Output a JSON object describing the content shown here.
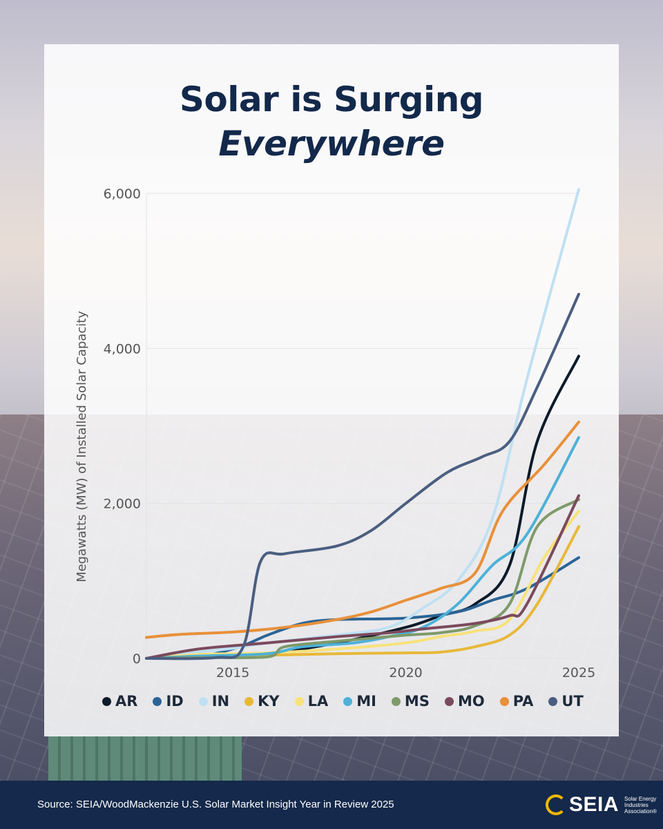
{
  "title_line1": "Solar is Surging",
  "title_line2": "Everywhere",
  "source": "Source: SEIA/WoodMackenzie U.S. Solar Market Insight Year in Review 2025",
  "logo": {
    "name": "SEIA",
    "tagline": "Solar Energy Industries Association®"
  },
  "chart_data": {
    "type": "line",
    "title": "Solar is Surging Everywhere",
    "xlabel": "",
    "ylabel": "Megawatts (MW) of Installed Solar Capacity",
    "xlim": [
      2012.5,
      2025
    ],
    "ylim": [
      0,
      6000
    ],
    "x_ticks": [
      "2015",
      "2020",
      "2025"
    ],
    "y_ticks": [
      "0",
      "2,000",
      "4,000",
      "6,000"
    ],
    "grid": "horizontal",
    "legend_position": "bottom",
    "series": [
      {
        "name": "AR",
        "color": "#0d1b2a",
        "points": [
          [
            2012.5,
            0
          ],
          [
            2014,
            10
          ],
          [
            2016,
            60
          ],
          [
            2018,
            200
          ],
          [
            2020,
            400
          ],
          [
            2021,
            550
          ],
          [
            2022,
            700
          ],
          [
            2023,
            1200
          ],
          [
            2023.8,
            2800
          ],
          [
            2025,
            3900
          ]
        ]
      },
      {
        "name": "ID",
        "color": "#2a6496",
        "points": [
          [
            2012.5,
            0
          ],
          [
            2014,
            20
          ],
          [
            2015.2,
            150
          ],
          [
            2016,
            300
          ],
          [
            2017,
            450
          ],
          [
            2018,
            500
          ],
          [
            2020,
            520
          ],
          [
            2021.5,
            600
          ],
          [
            2022.5,
            750
          ],
          [
            2023.5,
            900
          ],
          [
            2025,
            1300
          ]
        ]
      },
      {
        "name": "IN",
        "color": "#bfe0f2",
        "points": [
          [
            2012.5,
            0
          ],
          [
            2014,
            80
          ],
          [
            2015,
            130
          ],
          [
            2016,
            200
          ],
          [
            2018,
            300
          ],
          [
            2019.5,
            400
          ],
          [
            2020.5,
            650
          ],
          [
            2021.5,
            1000
          ],
          [
            2022.5,
            1800
          ],
          [
            2023.5,
            3600
          ],
          [
            2025,
            6050
          ]
        ]
      },
      {
        "name": "KY",
        "color": "#e8b838",
        "points": [
          [
            2012.5,
            0
          ],
          [
            2014,
            20
          ],
          [
            2016,
            40
          ],
          [
            2018,
            60
          ],
          [
            2020,
            70
          ],
          [
            2021,
            80
          ],
          [
            2022,
            150
          ],
          [
            2023,
            300
          ],
          [
            2023.8,
            700
          ],
          [
            2025,
            1700
          ]
        ]
      },
      {
        "name": "LA",
        "color": "#f7e27a",
        "points": [
          [
            2012.5,
            0
          ],
          [
            2014,
            50
          ],
          [
            2016,
            70
          ],
          [
            2018,
            120
          ],
          [
            2020,
            200
          ],
          [
            2021,
            280
          ],
          [
            2022,
            350
          ],
          [
            2023,
            500
          ],
          [
            2024,
            1300
          ],
          [
            2025,
            1900
          ]
        ]
      },
      {
        "name": "MI",
        "color": "#4db1d8",
        "points": [
          [
            2012.5,
            0
          ],
          [
            2014,
            30
          ],
          [
            2016,
            60
          ],
          [
            2017,
            150
          ],
          [
            2018.5,
            200
          ],
          [
            2019.5,
            280
          ],
          [
            2020.5,
            400
          ],
          [
            2021.5,
            700
          ],
          [
            2022.5,
            1200
          ],
          [
            2023.5,
            1600
          ],
          [
            2025,
            2850
          ]
        ]
      },
      {
        "name": "MS",
        "color": "#7e9a6a",
        "points": [
          [
            2012.5,
            0
          ],
          [
            2014,
            10
          ],
          [
            2016,
            20
          ],
          [
            2016.5,
            150
          ],
          [
            2018,
            220
          ],
          [
            2020,
            300
          ],
          [
            2021,
            330
          ],
          [
            2022,
            420
          ],
          [
            2023,
            700
          ],
          [
            2023.8,
            1700
          ],
          [
            2025,
            2050
          ]
        ]
      },
      {
        "name": "MO",
        "color": "#7b4a5c",
        "points": [
          [
            2012.5,
            0
          ],
          [
            2014,
            120
          ],
          [
            2016,
            200
          ],
          [
            2018,
            280
          ],
          [
            2019.5,
            330
          ],
          [
            2020.5,
            380
          ],
          [
            2022,
            450
          ],
          [
            2023,
            550
          ],
          [
            2023.5,
            700
          ],
          [
            2025,
            2100
          ]
        ]
      },
      {
        "name": "PA",
        "color": "#e8903a",
        "points": [
          [
            2012.5,
            270
          ],
          [
            2013.5,
            310
          ],
          [
            2015,
            340
          ],
          [
            2016.5,
            400
          ],
          [
            2018,
            500
          ],
          [
            2019,
            600
          ],
          [
            2020,
            750
          ],
          [
            2021,
            900
          ],
          [
            2022,
            1100
          ],
          [
            2022.8,
            1900
          ],
          [
            2024,
            2500
          ],
          [
            2025,
            3050
          ]
        ]
      },
      {
        "name": "UT",
        "color": "#4a5e80",
        "points": [
          [
            2012.5,
            0
          ],
          [
            2014.5,
            10
          ],
          [
            2015.3,
            150
          ],
          [
            2015.8,
            1250
          ],
          [
            2016.5,
            1350
          ],
          [
            2018,
            1450
          ],
          [
            2019,
            1650
          ],
          [
            2020,
            2000
          ],
          [
            2021.2,
            2400
          ],
          [
            2022.2,
            2600
          ],
          [
            2023,
            2800
          ],
          [
            2023.8,
            3500
          ],
          [
            2025,
            4700
          ]
        ]
      }
    ]
  }
}
